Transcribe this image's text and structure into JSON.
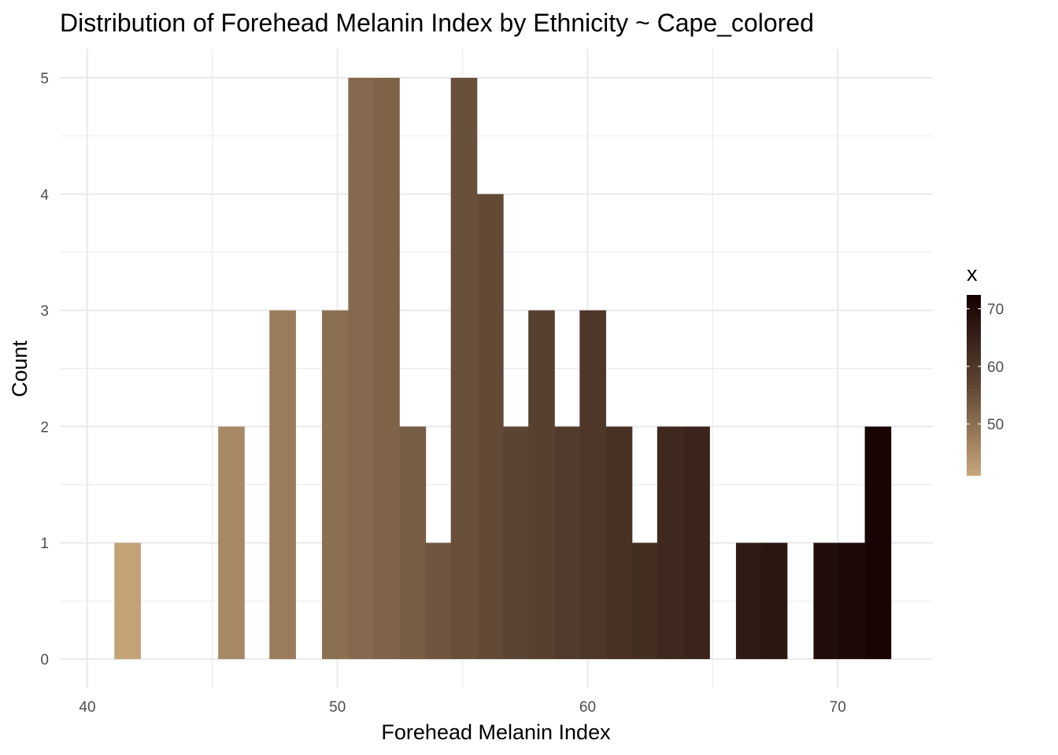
{
  "chart_data": {
    "type": "histogram",
    "title": "Distribution of Forehead Melanin Index by Ethnicity ~ Cape_colored",
    "xlabel": "Forehead Melanin Index",
    "ylabel": "Count",
    "xlim": [
      38.9,
      73.8
    ],
    "ylim": [
      -0.25,
      5.25
    ],
    "x_ticks": [
      40,
      50,
      60,
      70
    ],
    "y_ticks": [
      0,
      1,
      2,
      3,
      4,
      5
    ],
    "bin_width": 1.04,
    "bins": [
      {
        "x": 41.6,
        "count": 1
      },
      {
        "x": 45.75,
        "count": 2
      },
      {
        "x": 47.8,
        "count": 3
      },
      {
        "x": 49.9,
        "count": 3
      },
      {
        "x": 50.95,
        "count": 5
      },
      {
        "x": 51.95,
        "count": 5
      },
      {
        "x": 53.0,
        "count": 2
      },
      {
        "x": 54.05,
        "count": 1
      },
      {
        "x": 55.05,
        "count": 5
      },
      {
        "x": 56.1,
        "count": 4
      },
      {
        "x": 57.15,
        "count": 2
      },
      {
        "x": 58.15,
        "count": 3
      },
      {
        "x": 59.2,
        "count": 2
      },
      {
        "x": 60.2,
        "count": 3
      },
      {
        "x": 61.25,
        "count": 2
      },
      {
        "x": 62.3,
        "count": 1
      },
      {
        "x": 63.3,
        "count": 2
      },
      {
        "x": 64.35,
        "count": 2
      },
      {
        "x": 66.45,
        "count": 1
      },
      {
        "x": 67.45,
        "count": 1
      },
      {
        "x": 69.55,
        "count": 1
      },
      {
        "x": 70.55,
        "count": 1
      },
      {
        "x": 71.6,
        "count": 2
      }
    ],
    "legend": {
      "title": "x",
      "position": "right",
      "range": [
        41.0,
        72.4
      ],
      "labels": [
        50,
        60,
        70
      ],
      "color_low": "#c8a67a",
      "color_high": "#140000"
    },
    "grid": true
  }
}
